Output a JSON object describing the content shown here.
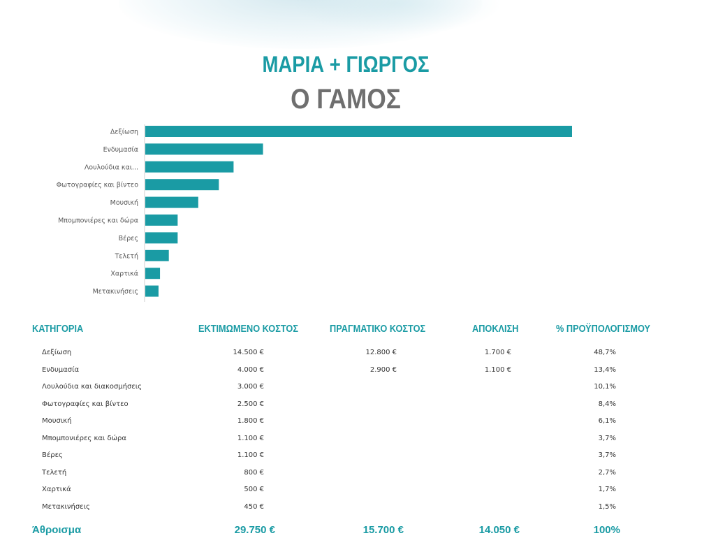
{
  "header": {
    "names": "ΜΑΡΙΑ + ΓΙΩΡΓΟΣ",
    "subtitle": "Ο ΓΑΜΟΣ"
  },
  "colors": {
    "accent": "#1a9ba4",
    "subtitle": "#6f6f6f"
  },
  "chart_data": {
    "type": "bar",
    "orientation": "horizontal",
    "categories": [
      "Δεξίωση",
      "Ενδυμασία",
      "Λουλούδια και...",
      "Φωτογραφίες και βίντεο",
      "Μουσική",
      "Μπομπονιέρες και δώρα",
      "Βέρες",
      "Τελετή",
      "Χαρτικά",
      "Μετακινήσεις"
    ],
    "values": [
      14500,
      4000,
      3000,
      2500,
      1800,
      1100,
      1100,
      800,
      500,
      450
    ],
    "xlim": [
      0,
      14500
    ],
    "color": "#1a9ba4",
    "grid": false
  },
  "table": {
    "headers": {
      "category": "ΚΑΤΗΓΟΡΙΑ",
      "estimated": "ΕΚΤΙΜΩΜΕΝΟ ΚΟΣΤΟΣ",
      "actual": "ΠΡΑΓΜΑΤΙΚΟ ΚΟΣΤΟΣ",
      "variance": "ΑΠΟΚΛΙΣΗ",
      "percent": "% ΠΡΟΫΠΟΛΟΓΙΣΜΟΥ"
    },
    "rows": [
      {
        "category": "Δεξίωση",
        "estimated": "14.500 €",
        "actual": "12.800 €",
        "variance": "1.700 €",
        "percent": "48,7%"
      },
      {
        "category": "Ενδυμασία",
        "estimated": "4.000 €",
        "actual": "2.900 €",
        "variance": "1.100 €",
        "percent": "13,4%"
      },
      {
        "category": "Λουλούδια και διακοσμήσεις",
        "estimated": "3.000 €",
        "actual": "",
        "variance": "",
        "percent": "10,1%"
      },
      {
        "category": "Φωτογραφίες και βίντεο",
        "estimated": "2.500 €",
        "actual": "",
        "variance": "",
        "percent": "8,4%"
      },
      {
        "category": "Μουσική",
        "estimated": "1.800 €",
        "actual": "",
        "variance": "",
        "percent": "6,1%"
      },
      {
        "category": "Μπομπονιέρες και δώρα",
        "estimated": "1.100 €",
        "actual": "",
        "variance": "",
        "percent": "3,7%"
      },
      {
        "category": "Βέρες",
        "estimated": "1.100 €",
        "actual": "",
        "variance": "",
        "percent": "3,7%"
      },
      {
        "category": "Τελετή",
        "estimated": "800 €",
        "actual": "",
        "variance": "",
        "percent": "2,7%"
      },
      {
        "category": "Χαρτικά",
        "estimated": "500 €",
        "actual": "",
        "variance": "",
        "percent": "1,7%"
      },
      {
        "category": "Μετακινήσεις",
        "estimated": "450 €",
        "actual": "",
        "variance": "",
        "percent": "1,5%"
      }
    ],
    "totals": {
      "label": "Άθροισμα",
      "estimated": "29.750 €",
      "actual": "15.700 €",
      "variance": "14.050 €",
      "percent": "100%"
    }
  }
}
